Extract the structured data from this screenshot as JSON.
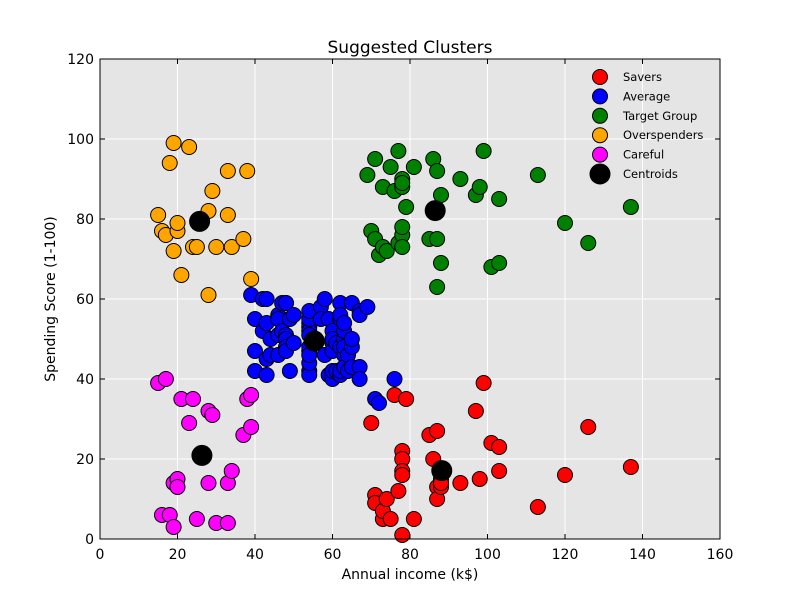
{
  "chart_data": {
    "type": "scatter",
    "title": "Suggested Clusters",
    "xlabel": "Annual income (k$)",
    "ylabel": "Spending Score (1-100)",
    "xlim": [
      0,
      160
    ],
    "ylim": [
      0,
      120
    ],
    "xticks": [
      0,
      20,
      40,
      60,
      80,
      100,
      120,
      140,
      160
    ],
    "yticks": [
      0,
      20,
      40,
      60,
      80,
      100,
      120
    ],
    "grid": true,
    "background": "#e5e5e5",
    "legend_position": "top-right",
    "series": [
      {
        "name": "Savers",
        "color": "#ff0000",
        "points": [
          [
            70,
            29
          ],
          [
            71,
            11
          ],
          [
            71,
            9
          ],
          [
            73,
            5
          ],
          [
            73,
            7
          ],
          [
            74,
            10
          ],
          [
            75,
            5
          ],
          [
            76,
            36
          ],
          [
            77,
            12
          ],
          [
            78,
            22
          ],
          [
            78,
            20
          ],
          [
            78,
            17
          ],
          [
            78,
            16
          ],
          [
            78,
            1
          ],
          [
            79,
            35
          ],
          [
            81,
            5
          ],
          [
            85,
            26
          ],
          [
            86,
            20
          ],
          [
            87,
            27
          ],
          [
            87,
            13
          ],
          [
            87,
            10
          ],
          [
            88,
            13
          ],
          [
            88,
            15
          ],
          [
            88,
            14
          ],
          [
            93,
            14
          ],
          [
            97,
            32
          ],
          [
            98,
            15
          ],
          [
            99,
            39
          ],
          [
            101,
            24
          ],
          [
            103,
            23
          ],
          [
            103,
            17
          ],
          [
            113,
            8
          ],
          [
            120,
            16
          ],
          [
            126,
            28
          ],
          [
            137,
            18
          ]
        ]
      },
      {
        "name": "Average",
        "color": "#0000ff",
        "points": [
          [
            39,
            61
          ],
          [
            40,
            55
          ],
          [
            40,
            47
          ],
          [
            40,
            42
          ],
          [
            42,
            52
          ],
          [
            42,
            60
          ],
          [
            43,
            54
          ],
          [
            43,
            60
          ],
          [
            43,
            45
          ],
          [
            43,
            41
          ],
          [
            44,
            50
          ],
          [
            44,
            46
          ],
          [
            46,
            51
          ],
          [
            46,
            46
          ],
          [
            46,
            56
          ],
          [
            46,
            55
          ],
          [
            47,
            52
          ],
          [
            47,
            59
          ],
          [
            48,
            51
          ],
          [
            48,
            59
          ],
          [
            48,
            50
          ],
          [
            48,
            48
          ],
          [
            48,
            59
          ],
          [
            48,
            47
          ],
          [
            49,
            55
          ],
          [
            49,
            42
          ],
          [
            50,
            49
          ],
          [
            50,
            56
          ],
          [
            54,
            47
          ],
          [
            54,
            54
          ],
          [
            54,
            53
          ],
          [
            54,
            48
          ],
          [
            54,
            52
          ],
          [
            54,
            42
          ],
          [
            54,
            51
          ],
          [
            54,
            55
          ],
          [
            54,
            41
          ],
          [
            54,
            44
          ],
          [
            54,
            57
          ],
          [
            54,
            46
          ],
          [
            57,
            58
          ],
          [
            57,
            55
          ],
          [
            58,
            60
          ],
          [
            58,
            46
          ],
          [
            59,
            55
          ],
          [
            59,
            41
          ],
          [
            60,
            49
          ],
          [
            60,
            40
          ],
          [
            60,
            42
          ],
          [
            60,
            52
          ],
          [
            60,
            47
          ],
          [
            60,
            50
          ],
          [
            61,
            42
          ],
          [
            61,
            49
          ],
          [
            62,
            41
          ],
          [
            62,
            48
          ],
          [
            62,
            59
          ],
          [
            62,
            55
          ],
          [
            62,
            56
          ],
          [
            62,
            42
          ],
          [
            63,
            50
          ],
          [
            63,
            46
          ],
          [
            63,
            43
          ],
          [
            63,
            48
          ],
          [
            63,
            52
          ],
          [
            63,
            54
          ],
          [
            64,
            42
          ],
          [
            64,
            46
          ],
          [
            65,
            48
          ],
          [
            65,
            50
          ],
          [
            65,
            43
          ],
          [
            65,
            59
          ],
          [
            67,
            43
          ],
          [
            67,
            57
          ],
          [
            67,
            56
          ],
          [
            67,
            40
          ],
          [
            69,
            58
          ],
          [
            71,
            35
          ],
          [
            72,
            34
          ],
          [
            76,
            40
          ]
        ]
      },
      {
        "name": "Target Group",
        "color": "#008000",
        "points": [
          [
            69,
            91
          ],
          [
            70,
            77
          ],
          [
            71,
            95
          ],
          [
            71,
            75
          ],
          [
            72,
            71
          ],
          [
            73,
            88
          ],
          [
            73,
            73
          ],
          [
            74,
            72
          ],
          [
            75,
            93
          ],
          [
            76,
            87
          ],
          [
            77,
            97
          ],
          [
            77,
            74
          ],
          [
            78,
            90
          ],
          [
            78,
            88
          ],
          [
            78,
            76
          ],
          [
            78,
            89
          ],
          [
            78,
            78
          ],
          [
            78,
            73
          ],
          [
            79,
            83
          ],
          [
            81,
            93
          ],
          [
            85,
            75
          ],
          [
            86,
            95
          ],
          [
            87,
            63
          ],
          [
            87,
            75
          ],
          [
            87,
            92
          ],
          [
            88,
            86
          ],
          [
            88,
            69
          ],
          [
            93,
            90
          ],
          [
            97,
            86
          ],
          [
            98,
            88
          ],
          [
            99,
            97
          ],
          [
            101,
            68
          ],
          [
            103,
            85
          ],
          [
            103,
            69
          ],
          [
            113,
            91
          ],
          [
            120,
            79
          ],
          [
            126,
            74
          ],
          [
            137,
            83
          ]
        ]
      },
      {
        "name": "Overspenders",
        "color": "#ffa500",
        "points": [
          [
            15,
            81
          ],
          [
            16,
            77
          ],
          [
            17,
            76
          ],
          [
            18,
            94
          ],
          [
            19,
            72
          ],
          [
            19,
            99
          ],
          [
            20,
            77
          ],
          [
            20,
            79
          ],
          [
            21,
            66
          ],
          [
            23,
            98
          ],
          [
            24,
            73
          ],
          [
            25,
            73
          ],
          [
            28,
            82
          ],
          [
            28,
            61
          ],
          [
            29,
            87
          ],
          [
            30,
            73
          ],
          [
            33,
            92
          ],
          [
            33,
            81
          ],
          [
            34,
            73
          ],
          [
            37,
            75
          ],
          [
            38,
            92
          ],
          [
            39,
            65
          ]
        ]
      },
      {
        "name": "Careful",
        "color": "#ff00ff",
        "points": [
          [
            15,
            39
          ],
          [
            16,
            6
          ],
          [
            17,
            40
          ],
          [
            18,
            6
          ],
          [
            19,
            3
          ],
          [
            19,
            14
          ],
          [
            20,
            15
          ],
          [
            20,
            13
          ],
          [
            21,
            35
          ],
          [
            23,
            29
          ],
          [
            24,
            35
          ],
          [
            25,
            5
          ],
          [
            28,
            14
          ],
          [
            28,
            32
          ],
          [
            29,
            31
          ],
          [
            30,
            4
          ],
          [
            33,
            4
          ],
          [
            33,
            14
          ],
          [
            34,
            17
          ],
          [
            37,
            26
          ],
          [
            38,
            35
          ],
          [
            39,
            36
          ],
          [
            39,
            28
          ]
        ]
      },
      {
        "name": "Centroids",
        "color": "#000000",
        "large": true,
        "points": [
          [
            88.2,
            17.1
          ],
          [
            55.3,
            49.5
          ],
          [
            86.5,
            82.1
          ],
          [
            25.7,
            79.4
          ],
          [
            26.3,
            20.9
          ]
        ]
      }
    ]
  }
}
